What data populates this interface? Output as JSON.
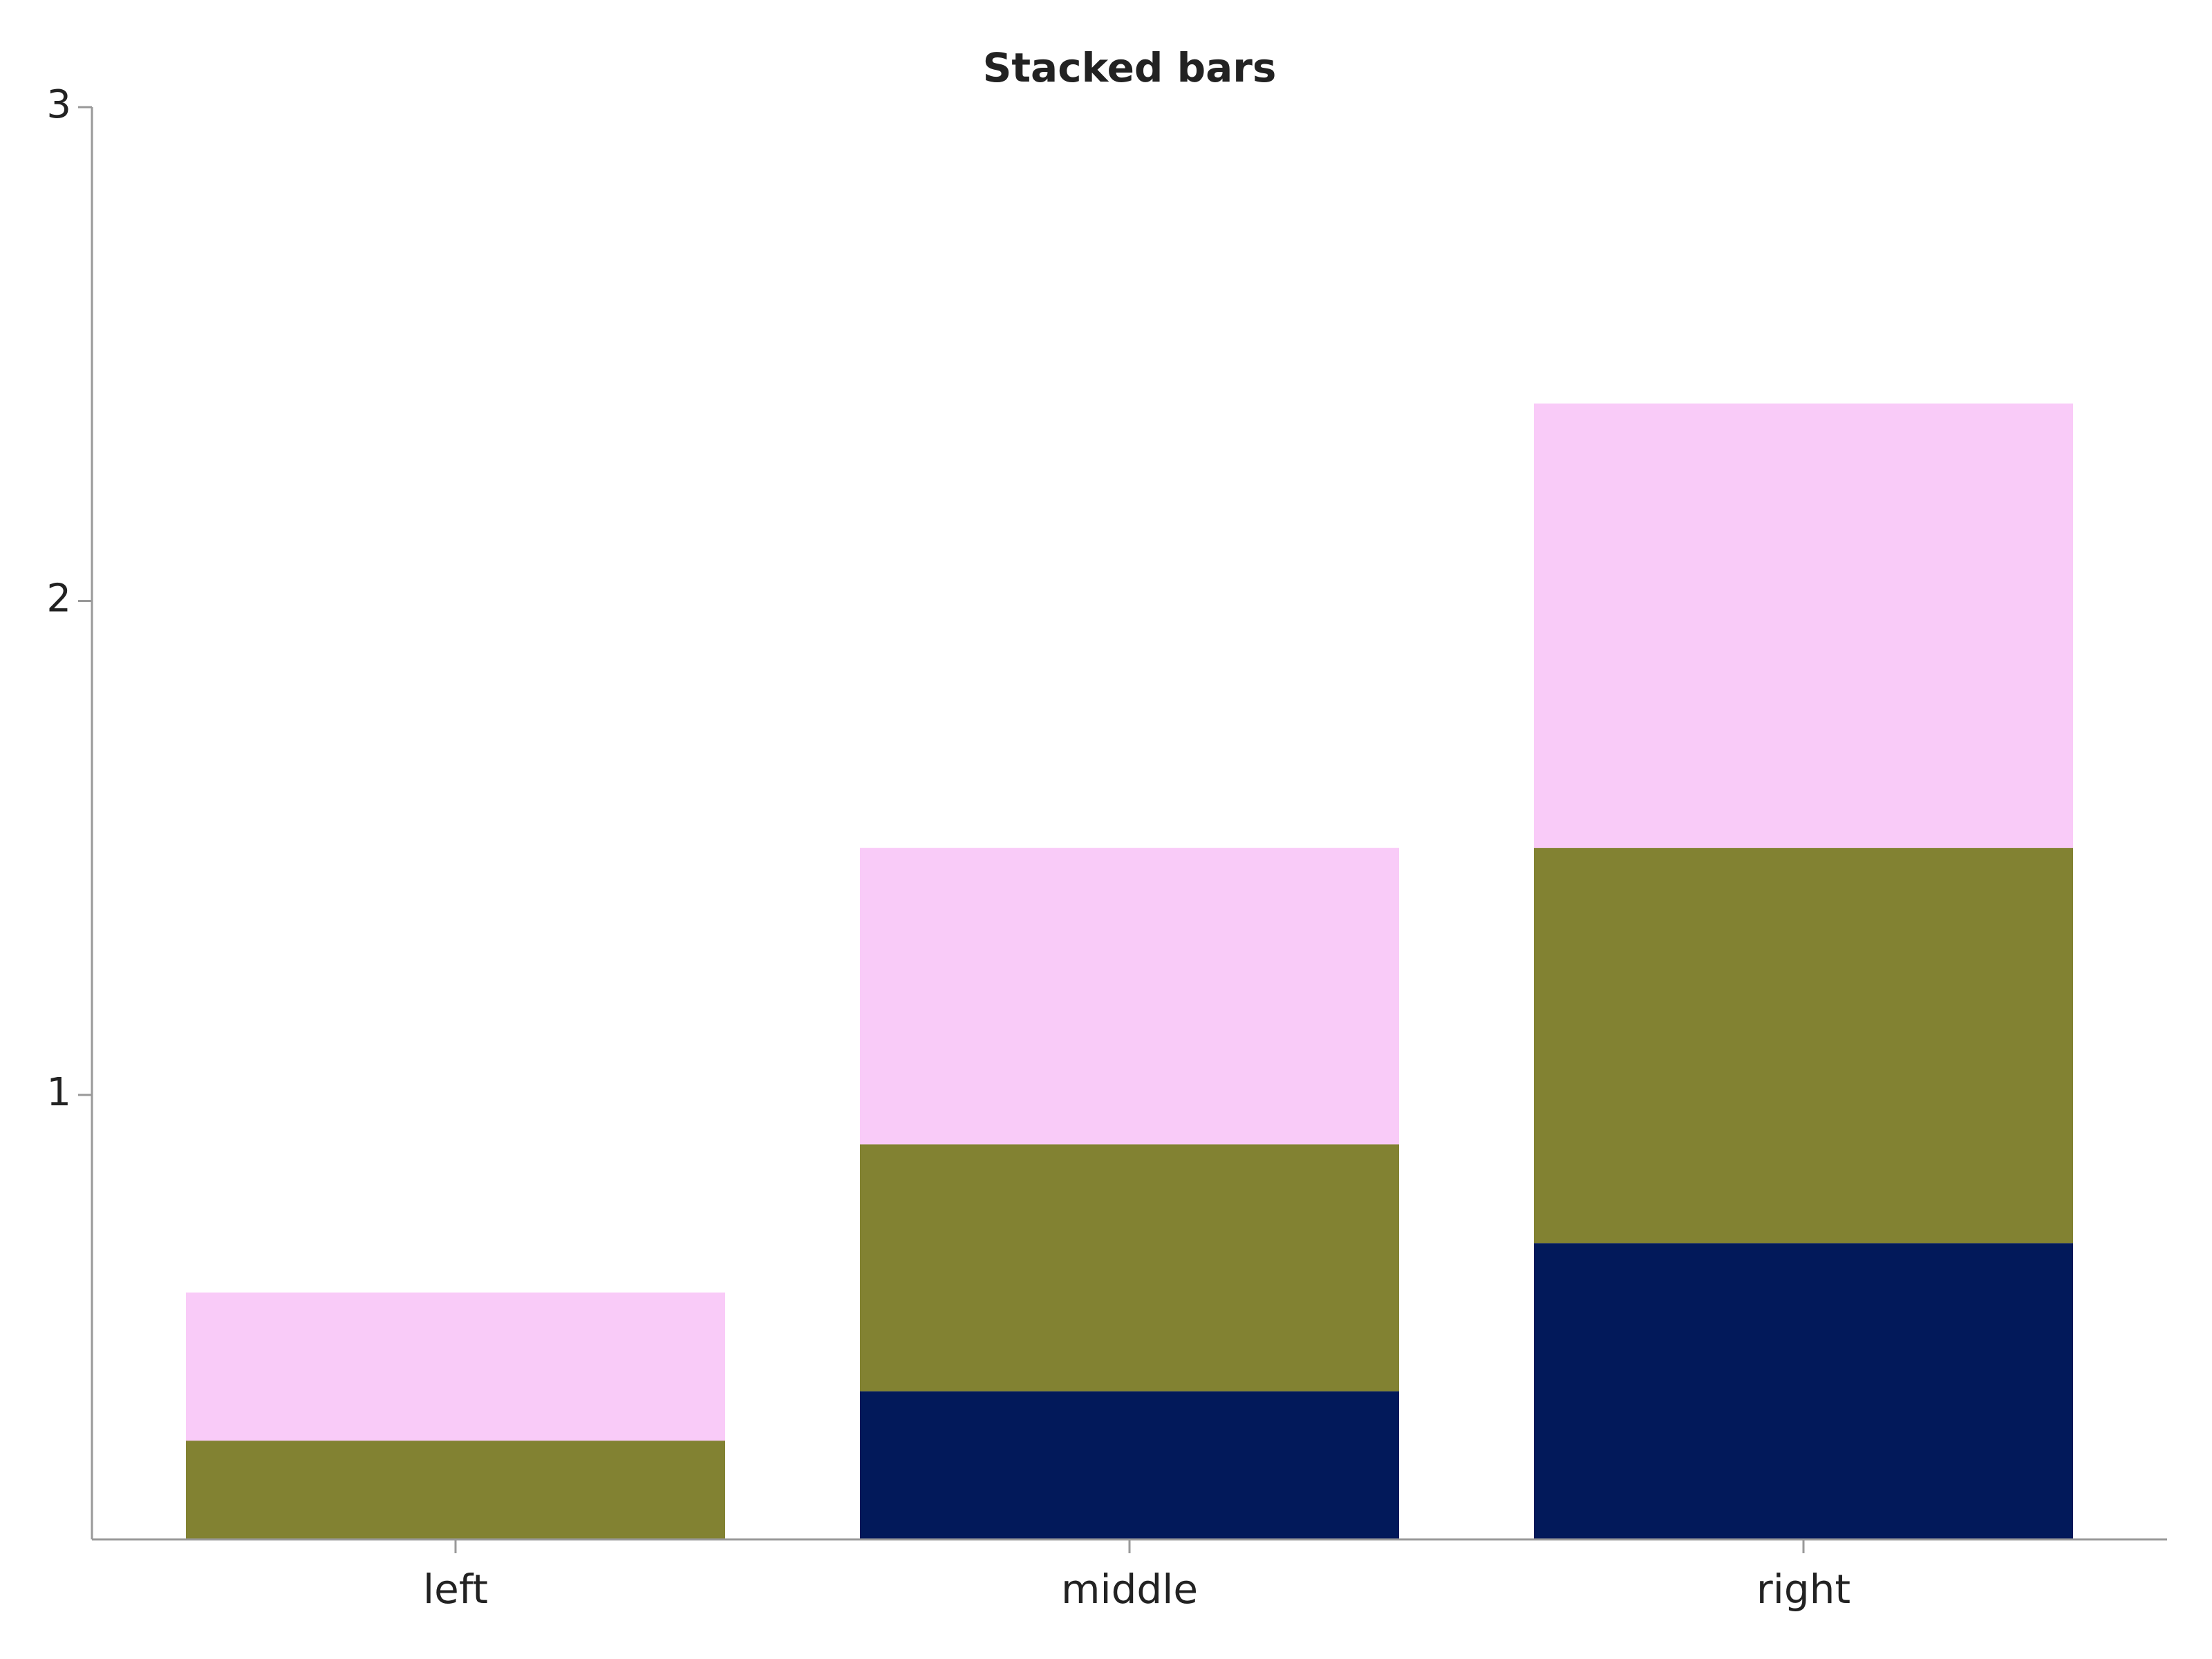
{
  "chart_data": {
    "type": "stacked_bar",
    "title": "Stacked bars",
    "categories": [
      "left",
      "middle",
      "right"
    ],
    "series": [
      {
        "color": "#02195a",
        "values": [
          0,
          0.4,
          0.7
        ]
      },
      {
        "color": "#828232",
        "values": [
          0.3,
          0.5,
          0.8
        ]
      },
      {
        "color": "#f9cbf8",
        "values": [
          0.3,
          0.6,
          0.9
        ]
      }
    ],
    "ylim": [
      0.1,
      3
    ],
    "yticks": [
      1,
      2,
      3
    ],
    "grid": false
  }
}
